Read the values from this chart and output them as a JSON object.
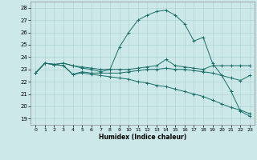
{
  "xlabel": "Humidex (Indice chaleur)",
  "xlim": [
    -0.5,
    23.5
  ],
  "ylim": [
    18.5,
    28.5
  ],
  "yticks": [
    19,
    20,
    21,
    22,
    23,
    24,
    25,
    26,
    27,
    28
  ],
  "xticks": [
    0,
    1,
    2,
    3,
    4,
    5,
    6,
    7,
    8,
    9,
    10,
    11,
    12,
    13,
    14,
    15,
    16,
    17,
    18,
    19,
    20,
    21,
    22,
    23
  ],
  "background_color": "#cce8e8",
  "grid_color": "#aacfcf",
  "line_color": "#1a6e6a",
  "lines": [
    {
      "x": [
        0,
        1,
        2,
        3,
        4,
        5,
        6,
        7,
        8,
        9,
        10,
        11,
        12,
        13,
        14,
        15,
        16,
        17,
        18,
        19,
        20,
        21,
        22,
        23
      ],
      "y": [
        22.7,
        23.5,
        23.4,
        23.5,
        23.3,
        23.1,
        23.0,
        22.8,
        23.0,
        24.8,
        26.0,
        27.0,
        27.4,
        27.7,
        27.8,
        27.4,
        26.7,
        25.3,
        25.6,
        23.5,
        22.5,
        21.2,
        19.6,
        19.2
      ]
    },
    {
      "x": [
        0,
        1,
        2,
        3,
        4,
        5,
        6,
        7,
        8,
        9,
        10,
        11,
        12,
        13,
        14,
        15,
        16,
        17,
        18,
        19,
        20,
        21,
        22,
        23
      ],
      "y": [
        22.7,
        23.5,
        23.4,
        23.5,
        23.3,
        23.2,
        23.1,
        23.0,
        23.0,
        23.0,
        23.0,
        23.1,
        23.2,
        23.3,
        23.8,
        23.3,
        23.2,
        23.1,
        23.0,
        23.3,
        23.3,
        23.3,
        23.3,
        23.3
      ]
    },
    {
      "x": [
        0,
        1,
        2,
        3,
        4,
        5,
        6,
        7,
        8,
        9,
        10,
        11,
        12,
        13,
        14,
        15,
        16,
        17,
        18,
        19,
        20,
        21,
        22,
        23
      ],
      "y": [
        22.7,
        23.5,
        23.4,
        23.3,
        22.6,
        22.8,
        22.7,
        22.7,
        22.7,
        22.7,
        22.8,
        22.9,
        23.0,
        23.0,
        23.1,
        23.0,
        23.0,
        22.9,
        22.8,
        22.7,
        22.5,
        22.3,
        22.1,
        22.5
      ]
    },
    {
      "x": [
        0,
        1,
        2,
        3,
        4,
        5,
        6,
        7,
        8,
        9,
        10,
        11,
        12,
        13,
        14,
        15,
        16,
        17,
        18,
        19,
        20,
        21,
        22,
        23
      ],
      "y": [
        22.7,
        23.5,
        23.4,
        23.3,
        22.6,
        22.7,
        22.6,
        22.5,
        22.4,
        22.3,
        22.2,
        22.0,
        21.9,
        21.7,
        21.6,
        21.4,
        21.2,
        21.0,
        20.8,
        20.5,
        20.2,
        19.9,
        19.7,
        19.4
      ]
    }
  ]
}
